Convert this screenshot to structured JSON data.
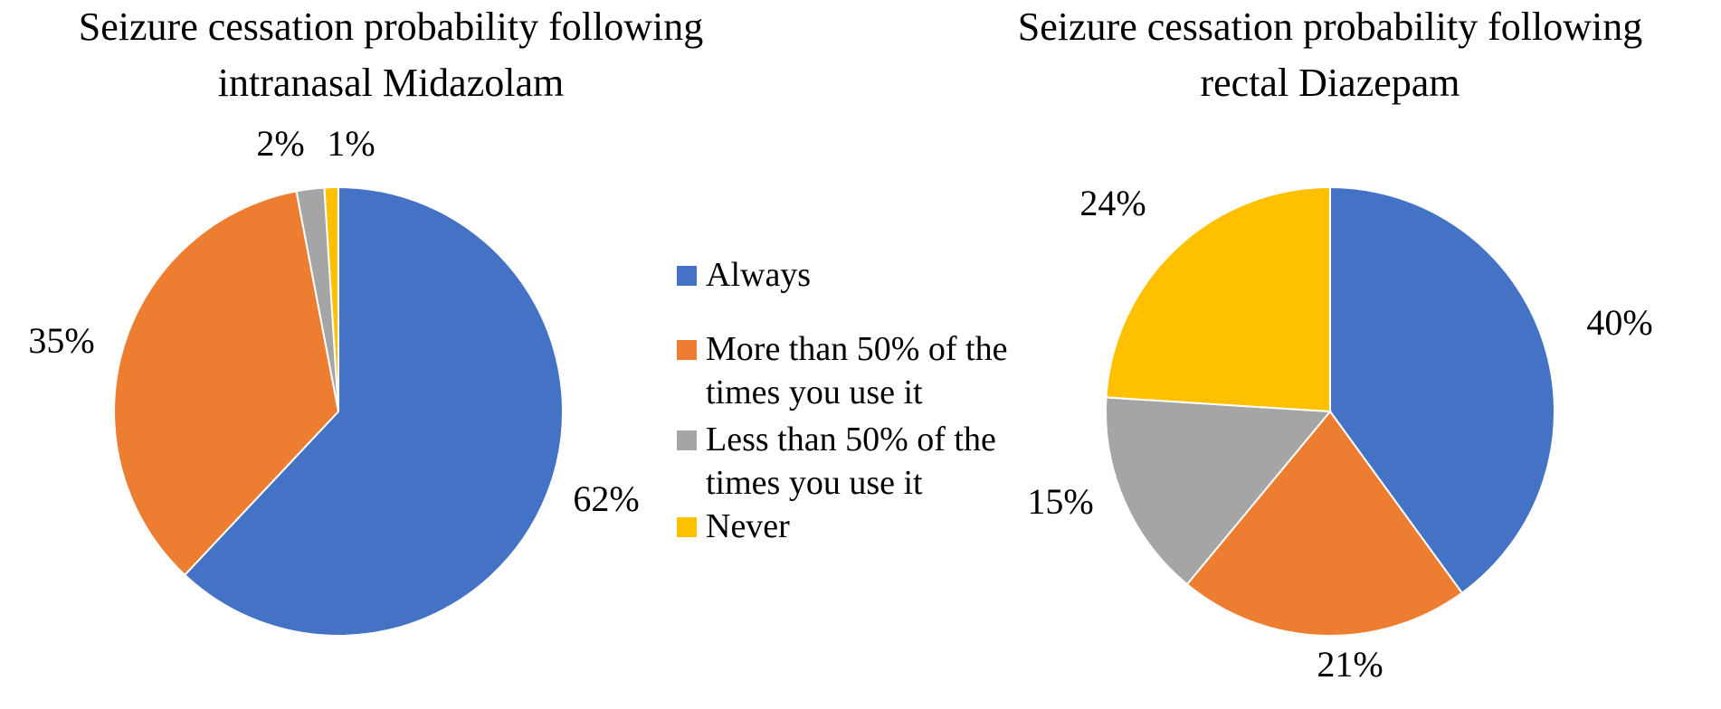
{
  "chart_data": [
    {
      "type": "pie",
      "title": [
        "Seizure cessation probability following",
        "intranasal Midazolam"
      ],
      "slices": [
        {
          "name": "Always",
          "value": 62,
          "label": "62%",
          "color": "#4472C4"
        },
        {
          "name": "More than 50% of the times you use it",
          "value": 35,
          "label": "35%",
          "color": "#ED7D31"
        },
        {
          "name": "Less than 50% of the times you use it",
          "value": 2,
          "label": "2%",
          "color": "#A5A5A5"
        },
        {
          "name": "Never",
          "value": 1,
          "label": "1%",
          "color": "#FFC000"
        }
      ]
    },
    {
      "type": "pie",
      "title": [
        "Seizure cessation probability following",
        "rectal Diazepam"
      ],
      "slices": [
        {
          "name": "Always",
          "value": 40,
          "label": "40%",
          "color": "#4472C4"
        },
        {
          "name": "More than 50% of the times you use it",
          "value": 21,
          "label": "21%",
          "color": "#ED7D31"
        },
        {
          "name": "Less than 50% of the times you use it",
          "value": 15,
          "label": "15%",
          "color": "#A5A5A5"
        },
        {
          "name": "Never",
          "value": 24,
          "label": "24%",
          "color": "#FFC000"
        }
      ]
    }
  ],
  "legend": {
    "placement": "center",
    "items": [
      {
        "lines": [
          "Always"
        ],
        "color": "#4472C4"
      },
      {
        "lines": [
          "More than 50% of the",
          "times you use it"
        ],
        "color": "#ED7D31"
      },
      {
        "lines": [
          "Less than 50% of the",
          "times you use it"
        ],
        "color": "#A5A5A5"
      },
      {
        "lines": [
          "Never"
        ],
        "color": "#FFC000"
      }
    ]
  }
}
